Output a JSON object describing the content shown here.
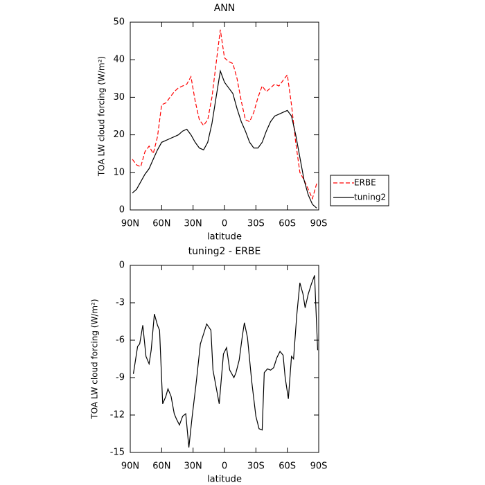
{
  "chart_data": [
    {
      "type": "line",
      "title": "ANN",
      "x_label": "latitude",
      "y_label": "TOA LW cloud forcing (W/m²)",
      "x": [
        88,
        84,
        80,
        76,
        72,
        68,
        64,
        60,
        56,
        52,
        48,
        44,
        40,
        36,
        32,
        28,
        24,
        20,
        16,
        12,
        8,
        4,
        0,
        -4,
        -8,
        -12,
        -16,
        -20,
        -24,
        -28,
        -32,
        -36,
        -40,
        -44,
        -48,
        -52,
        -56,
        -60,
        -64,
        -68,
        -72,
        -76,
        -80,
        -84,
        -88
      ],
      "series": [
        {
          "name": "ERBE",
          "color": "#ff0000",
          "linestyle": "dashed",
          "values": [
            13.5,
            12,
            11.5,
            15.5,
            17,
            15,
            19.5,
            28,
            28.5,
            30,
            31.5,
            32.5,
            33,
            33.5,
            35.5,
            29,
            24,
            22.5,
            24,
            30,
            39,
            48,
            40.5,
            39.5,
            39,
            35,
            29,
            24,
            23.5,
            26,
            30,
            33,
            31.5,
            32.5,
            33.5,
            33,
            34.5,
            36,
            28,
            18,
            10,
            8,
            5.5,
            3,
            7
          ]
        },
        {
          "name": "tuning2",
          "color": "#000000",
          "linestyle": "solid",
          "values": [
            4.5,
            5.5,
            7.5,
            9.5,
            11,
            13.5,
            16,
            18,
            18.5,
            19,
            19.5,
            20,
            21,
            21.5,
            20,
            18,
            16.5,
            16,
            18,
            23,
            30,
            37,
            34,
            32.5,
            31,
            27,
            23.5,
            21,
            18,
            16.5,
            16.5,
            18,
            21,
            23.5,
            25,
            25.5,
            26,
            26.5,
            25,
            20,
            14,
            8,
            4,
            1.5,
            0.5
          ]
        }
      ],
      "xlim": [
        90,
        -90
      ],
      "xticks": [
        {
          "value": 90,
          "label": "90N"
        },
        {
          "value": 60,
          "label": "60N"
        },
        {
          "value": 30,
          "label": "30N"
        },
        0,
        {
          "value": -30,
          "label": "30S"
        },
        {
          "value": -60,
          "label": "60S"
        },
        {
          "value": -90,
          "label": "90S"
        }
      ],
      "ylim": [
        0,
        50
      ],
      "yticks": [
        0,
        10,
        20,
        30,
        40,
        50
      ],
      "legend": "right"
    },
    {
      "type": "line",
      "title": "tuning2 - ERBE",
      "x_label": "latitude",
      "y_label": "TOA LW cloud forcing (W/m²)",
      "x": [
        87,
        83,
        81,
        78,
        75,
        72,
        70,
        67,
        64,
        62,
        59,
        56,
        54,
        51,
        48,
        46,
        43,
        40,
        37,
        34,
        31,
        27,
        23,
        20,
        17,
        13,
        11,
        5,
        1,
        -2,
        -5,
        -9,
        -11,
        -14,
        -17,
        -19,
        -22,
        -26,
        -30,
        -33,
        -36,
        -38,
        -41,
        -44,
        -47,
        -50,
        -53,
        -56,
        -58,
        -61,
        -64,
        -66,
        -69,
        -72,
        -75,
        -77,
        -80,
        -83,
        -86,
        -89
      ],
      "values": [
        -8.7,
        -6.5,
        -6.3,
        -4.8,
        -7.3,
        -7.9,
        -6.8,
        -3.9,
        -4.8,
        -5.2,
        -11.1,
        -10.5,
        -9.9,
        -10.5,
        -11.9,
        -12.3,
        -12.8,
        -12.1,
        -11.9,
        -14.6,
        -12.2,
        -9.4,
        -6.3,
        -5.5,
        -4.7,
        -5.2,
        -8.4,
        -11.1,
        -7.1,
        -6.6,
        -8.4,
        -9.0,
        -8.6,
        -7.6,
        -5.7,
        -4.6,
        -5.8,
        -9.3,
        -12.1,
        -13.1,
        -13.2,
        -8.6,
        -8.3,
        -8.4,
        -8.2,
        -7.4,
        -6.9,
        -7.2,
        -9.0,
        -10.7,
        -7.3,
        -7.5,
        -4.0,
        -1.4,
        -2.3,
        -3.4,
        -2.3,
        -1.5,
        -0.8,
        -6.8
      ],
      "color": "#000000",
      "xlim": [
        90,
        -90
      ],
      "xticks": [
        {
          "value": 90,
          "label": "90N"
        },
        {
          "value": 60,
          "label": "60N"
        },
        {
          "value": 30,
          "label": "30N"
        },
        0,
        {
          "value": -30,
          "label": "30S"
        },
        {
          "value": -60,
          "label": "60S"
        },
        {
          "value": -90,
          "label": "90S"
        }
      ],
      "ylim": [
        -15,
        0
      ],
      "yticks": [
        -15,
        -12,
        -9,
        -6,
        -3,
        0
      ]
    }
  ]
}
